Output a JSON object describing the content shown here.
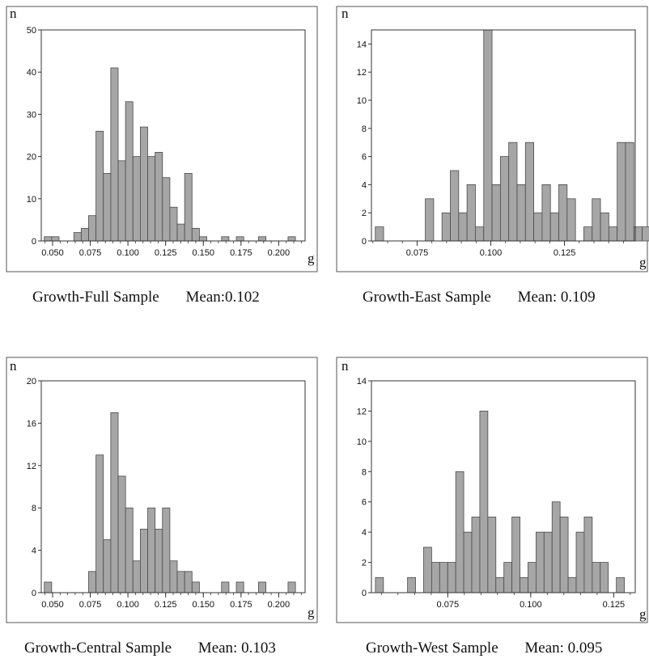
{
  "chart_data": [
    {
      "type": "bar",
      "caption_title": "Growth-Full Sample",
      "caption_mean": "Mean:0.102",
      "xlabel": "g",
      "ylabel": "n",
      "ylim": [
        0,
        50
      ],
      "yticks": [
        0,
        10,
        20,
        30,
        40,
        50
      ],
      "xlim": [
        0.0425,
        0.2175
      ],
      "xticks": [
        0.05,
        0.075,
        0.1,
        0.125,
        0.15,
        0.175,
        0.2
      ],
      "xtick_labels": [
        "0.050",
        "0.075",
        "0.100",
        "0.125",
        "0.150",
        "0.175",
        "0.200"
      ],
      "bin_start": 0.0445,
      "bin_width": 0.0049,
      "values": [
        1,
        1,
        0,
        0,
        2,
        3,
        6,
        26,
        16,
        41,
        19,
        33,
        20,
        27,
        20,
        21,
        15,
        8,
        4,
        16,
        3,
        1,
        0,
        0,
        1,
        0,
        1,
        0,
        0,
        1,
        0,
        0,
        0,
        1
      ],
      "grid": false
    },
    {
      "type": "bar",
      "caption_title": "Growth-East Sample",
      "caption_mean": "Mean: 0.109",
      "xlabel": "g",
      "ylabel": "n",
      "ylim": [
        0,
        15
      ],
      "yticks": [
        0,
        2,
        4,
        6,
        8,
        10,
        12,
        14
      ],
      "xlim": [
        0.0595,
        0.149
      ],
      "xticks": [
        0.075,
        0.1,
        0.125
      ],
      "xtick_labels": [
        "0.075",
        "0.100",
        "0.125"
      ],
      "bin_start": 0.0608,
      "bin_width": 0.00283,
      "values": [
        1,
        0,
        0,
        0,
        0,
        0,
        3,
        0,
        2,
        5,
        2,
        4,
        1,
        15,
        4,
        6,
        7,
        4,
        7,
        2,
        4,
        2,
        4,
        3,
        0,
        1,
        3,
        2,
        1,
        7,
        7,
        1,
        1,
        1
      ],
      "grid": false
    },
    {
      "type": "bar",
      "caption_title": "Growth-Central Sample",
      "caption_mean": "Mean: 0.103",
      "xlabel": "g",
      "ylabel": "n",
      "ylim": [
        0,
        20
      ],
      "yticks": [
        0,
        4,
        8,
        12,
        16,
        20
      ],
      "xlim": [
        0.0425,
        0.2175
      ],
      "xticks": [
        0.05,
        0.075,
        0.1,
        0.125,
        0.15,
        0.175,
        0.2
      ],
      "xtick_labels": [
        "0.050",
        "0.075",
        "0.100",
        "0.125",
        "0.150",
        "0.175",
        "0.200"
      ],
      "bin_start": 0.0445,
      "bin_width": 0.0049,
      "values": [
        1,
        0,
        0,
        0,
        0,
        0,
        2,
        13,
        5,
        17,
        11,
        8,
        3,
        6,
        8,
        6,
        8,
        3,
        2,
        2,
        1,
        0,
        0,
        0,
        1,
        0,
        1,
        0,
        0,
        1,
        0,
        0,
        0,
        1
      ],
      "grid": false
    },
    {
      "type": "bar",
      "caption_title": "Growth-West Sample",
      "caption_mean": "Mean: 0.095",
      "xlabel": "g",
      "ylabel": "n",
      "ylim": [
        0,
        14
      ],
      "yticks": [
        0,
        2,
        4,
        6,
        8,
        10,
        12,
        14
      ],
      "xlim": [
        0.052,
        0.1315
      ],
      "xticks": [
        0.075,
        0.1,
        0.125
      ],
      "xtick_labels": [
        "0.075",
        "0.100",
        "0.125"
      ],
      "bin_start": 0.0532,
      "bin_width": 0.00242,
      "values": [
        1,
        0,
        0,
        0,
        1,
        0,
        3,
        2,
        2,
        2,
        8,
        4,
        5,
        12,
        5,
        1,
        2,
        5,
        1,
        2,
        4,
        4,
        6,
        5,
        1,
        4,
        5,
        2,
        2,
        0,
        1
      ],
      "grid": false
    }
  ],
  "colors": {
    "bar_fill": "#a6a6a6",
    "bar_stroke": "#4a4a4a",
    "axis": "#333333",
    "frame": "#555555",
    "text": "#111111"
  }
}
